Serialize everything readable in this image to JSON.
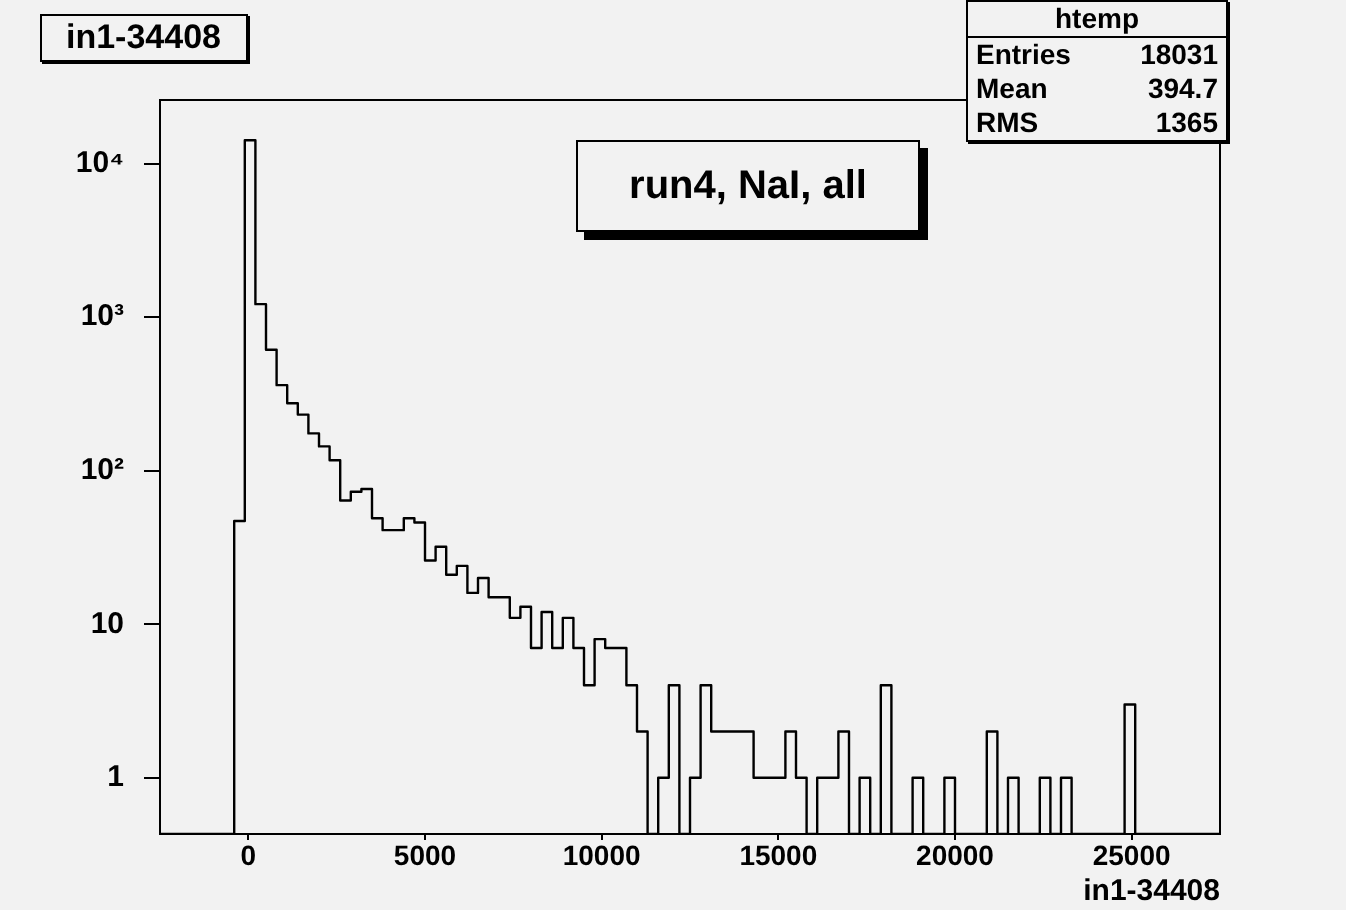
{
  "chart_data": {
    "type": "histogram",
    "title": "in1-34408",
    "xlabel": "in1-34408",
    "color": "#000000",
    "log": true,
    "bins": [
      -2500,
      -2200,
      -1900,
      -1600,
      -1300,
      -1000,
      -700,
      -400,
      -100,
      200,
      500,
      800,
      1100,
      1400,
      1700,
      2000,
      2300,
      2600,
      2900,
      3200,
      3500,
      3800,
      4100,
      4400,
      4700,
      5000,
      5300,
      5600,
      5900,
      6200,
      6500,
      6800,
      7100,
      7400,
      7700,
      8000,
      8300,
      8600,
      8900,
      9200,
      9500,
      9800,
      10100,
      10400,
      10700,
      11000,
      11300,
      11600,
      11900,
      12200,
      12500,
      12800,
      13100,
      13400,
      13700,
      14000,
      14300,
      14600,
      14900,
      15200,
      15500,
      15800,
      16100,
      16400,
      16700,
      17000,
      17300,
      17600,
      17900,
      18200,
      18500,
      18800,
      19100,
      19400,
      19700,
      20000,
      20300,
      20600,
      20900,
      21200,
      21500,
      21800,
      22100,
      22400,
      22700,
      23000,
      23300,
      23600,
      23900,
      24200,
      24500,
      24800,
      25100,
      25400,
      25700,
      26000,
      26300,
      26600,
      26900,
      27200,
      27500
    ],
    "values": [
      null,
      null,
      null,
      null,
      null,
      null,
      null,
      47,
      14200,
      1216,
      614,
      361,
      275,
      232,
      175,
      144,
      117,
      64,
      73,
      76,
      49,
      41,
      41,
      49,
      46,
      26,
      32,
      21,
      24,
      16,
      20,
      15,
      15,
      11,
      13,
      7,
      12,
      7,
      11,
      7,
      4,
      8,
      7,
      7,
      4,
      2,
      null,
      1,
      4,
      null,
      1,
      4,
      2,
      2,
      2,
      2,
      1,
      1,
      1,
      2,
      1,
      null,
      1,
      1,
      2,
      null,
      1,
      null,
      4,
      null,
      null,
      1,
      null,
      null,
      1,
      null,
      null,
      null,
      2,
      null,
      1,
      null,
      null,
      1,
      null,
      1,
      null,
      null,
      null,
      null,
      null,
      3,
      null,
      null,
      null,
      null,
      null,
      null,
      null,
      null
    ],
    "xlim": [
      -2500,
      27500
    ],
    "xticks": [
      0,
      5000,
      10000,
      15000,
      20000,
      25000
    ],
    "ylim": [
      0.43,
      26000
    ],
    "yticks": [
      1,
      10,
      {
        "value": 100,
        "label": "10²"
      },
      {
        "value": 1000,
        "label": "10³"
      },
      {
        "value": 10000,
        "label": "10⁴"
      }
    ],
    "annotations": [
      "run4, NaI, all",
      "htemp",
      "Entries 18031",
      "Mean 394.7",
      "RMS 1365"
    ]
  }
}
